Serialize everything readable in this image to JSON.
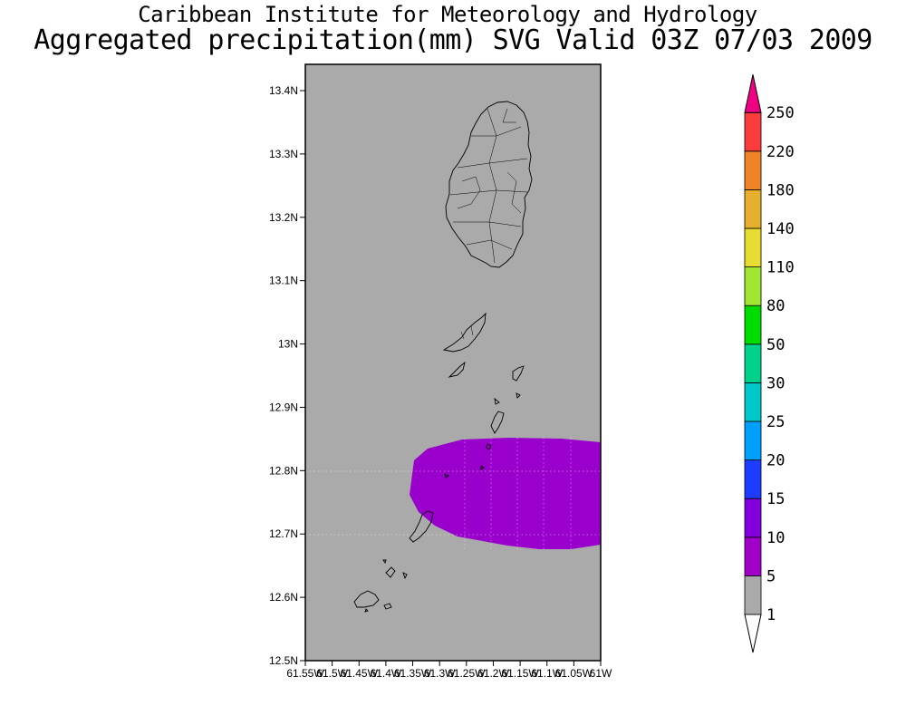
{
  "title": {
    "line1": "Caribbean Institute for Meteorology and Hydrology",
    "line2": "Aggregated precipitation(mm) SVG Valid 03Z 07/03 2009"
  },
  "map": {
    "background_color": "#aaaaaa",
    "precip_color": "#9900cc",
    "lat_ticks": [
      "13.4N",
      "13.3N",
      "13.2N",
      "13.1N",
      "13N",
      "12.9N",
      "12.8N",
      "12.7N",
      "12.6N",
      "12.5N"
    ],
    "lon_ticks": [
      "61.55W",
      "61.5W",
      "61.45W",
      "61.4W",
      "61.35W",
      "61.3W",
      "61.25W",
      "61.2W",
      "61.15W",
      "61.1W",
      "61.05W",
      "61W"
    ],
    "lat_range": [
      12.5,
      13.44
    ],
    "lon_range": [
      -61.55,
      -61.0
    ]
  },
  "colorbar": {
    "levels": [
      {
        "label": "1",
        "color": "#aaaaaa"
      },
      {
        "label": "5",
        "color": "#a000c8"
      },
      {
        "label": "10",
        "color": "#8200dc"
      },
      {
        "label": "15",
        "color": "#1e3cff"
      },
      {
        "label": "20",
        "color": "#00a0ff"
      },
      {
        "label": "25",
        "color": "#00c8c8"
      },
      {
        "label": "30",
        "color": "#00d28c"
      },
      {
        "label": "50",
        "color": "#00dc00"
      },
      {
        "label": "80",
        "color": "#a0e632"
      },
      {
        "label": "110",
        "color": "#e6dc32"
      },
      {
        "label": "140",
        "color": "#e6af2d"
      },
      {
        "label": "180",
        "color": "#f08228"
      },
      {
        "label": "220",
        "color": "#fa3c3c"
      },
      {
        "label": "250",
        "color": "#f00082"
      }
    ]
  }
}
